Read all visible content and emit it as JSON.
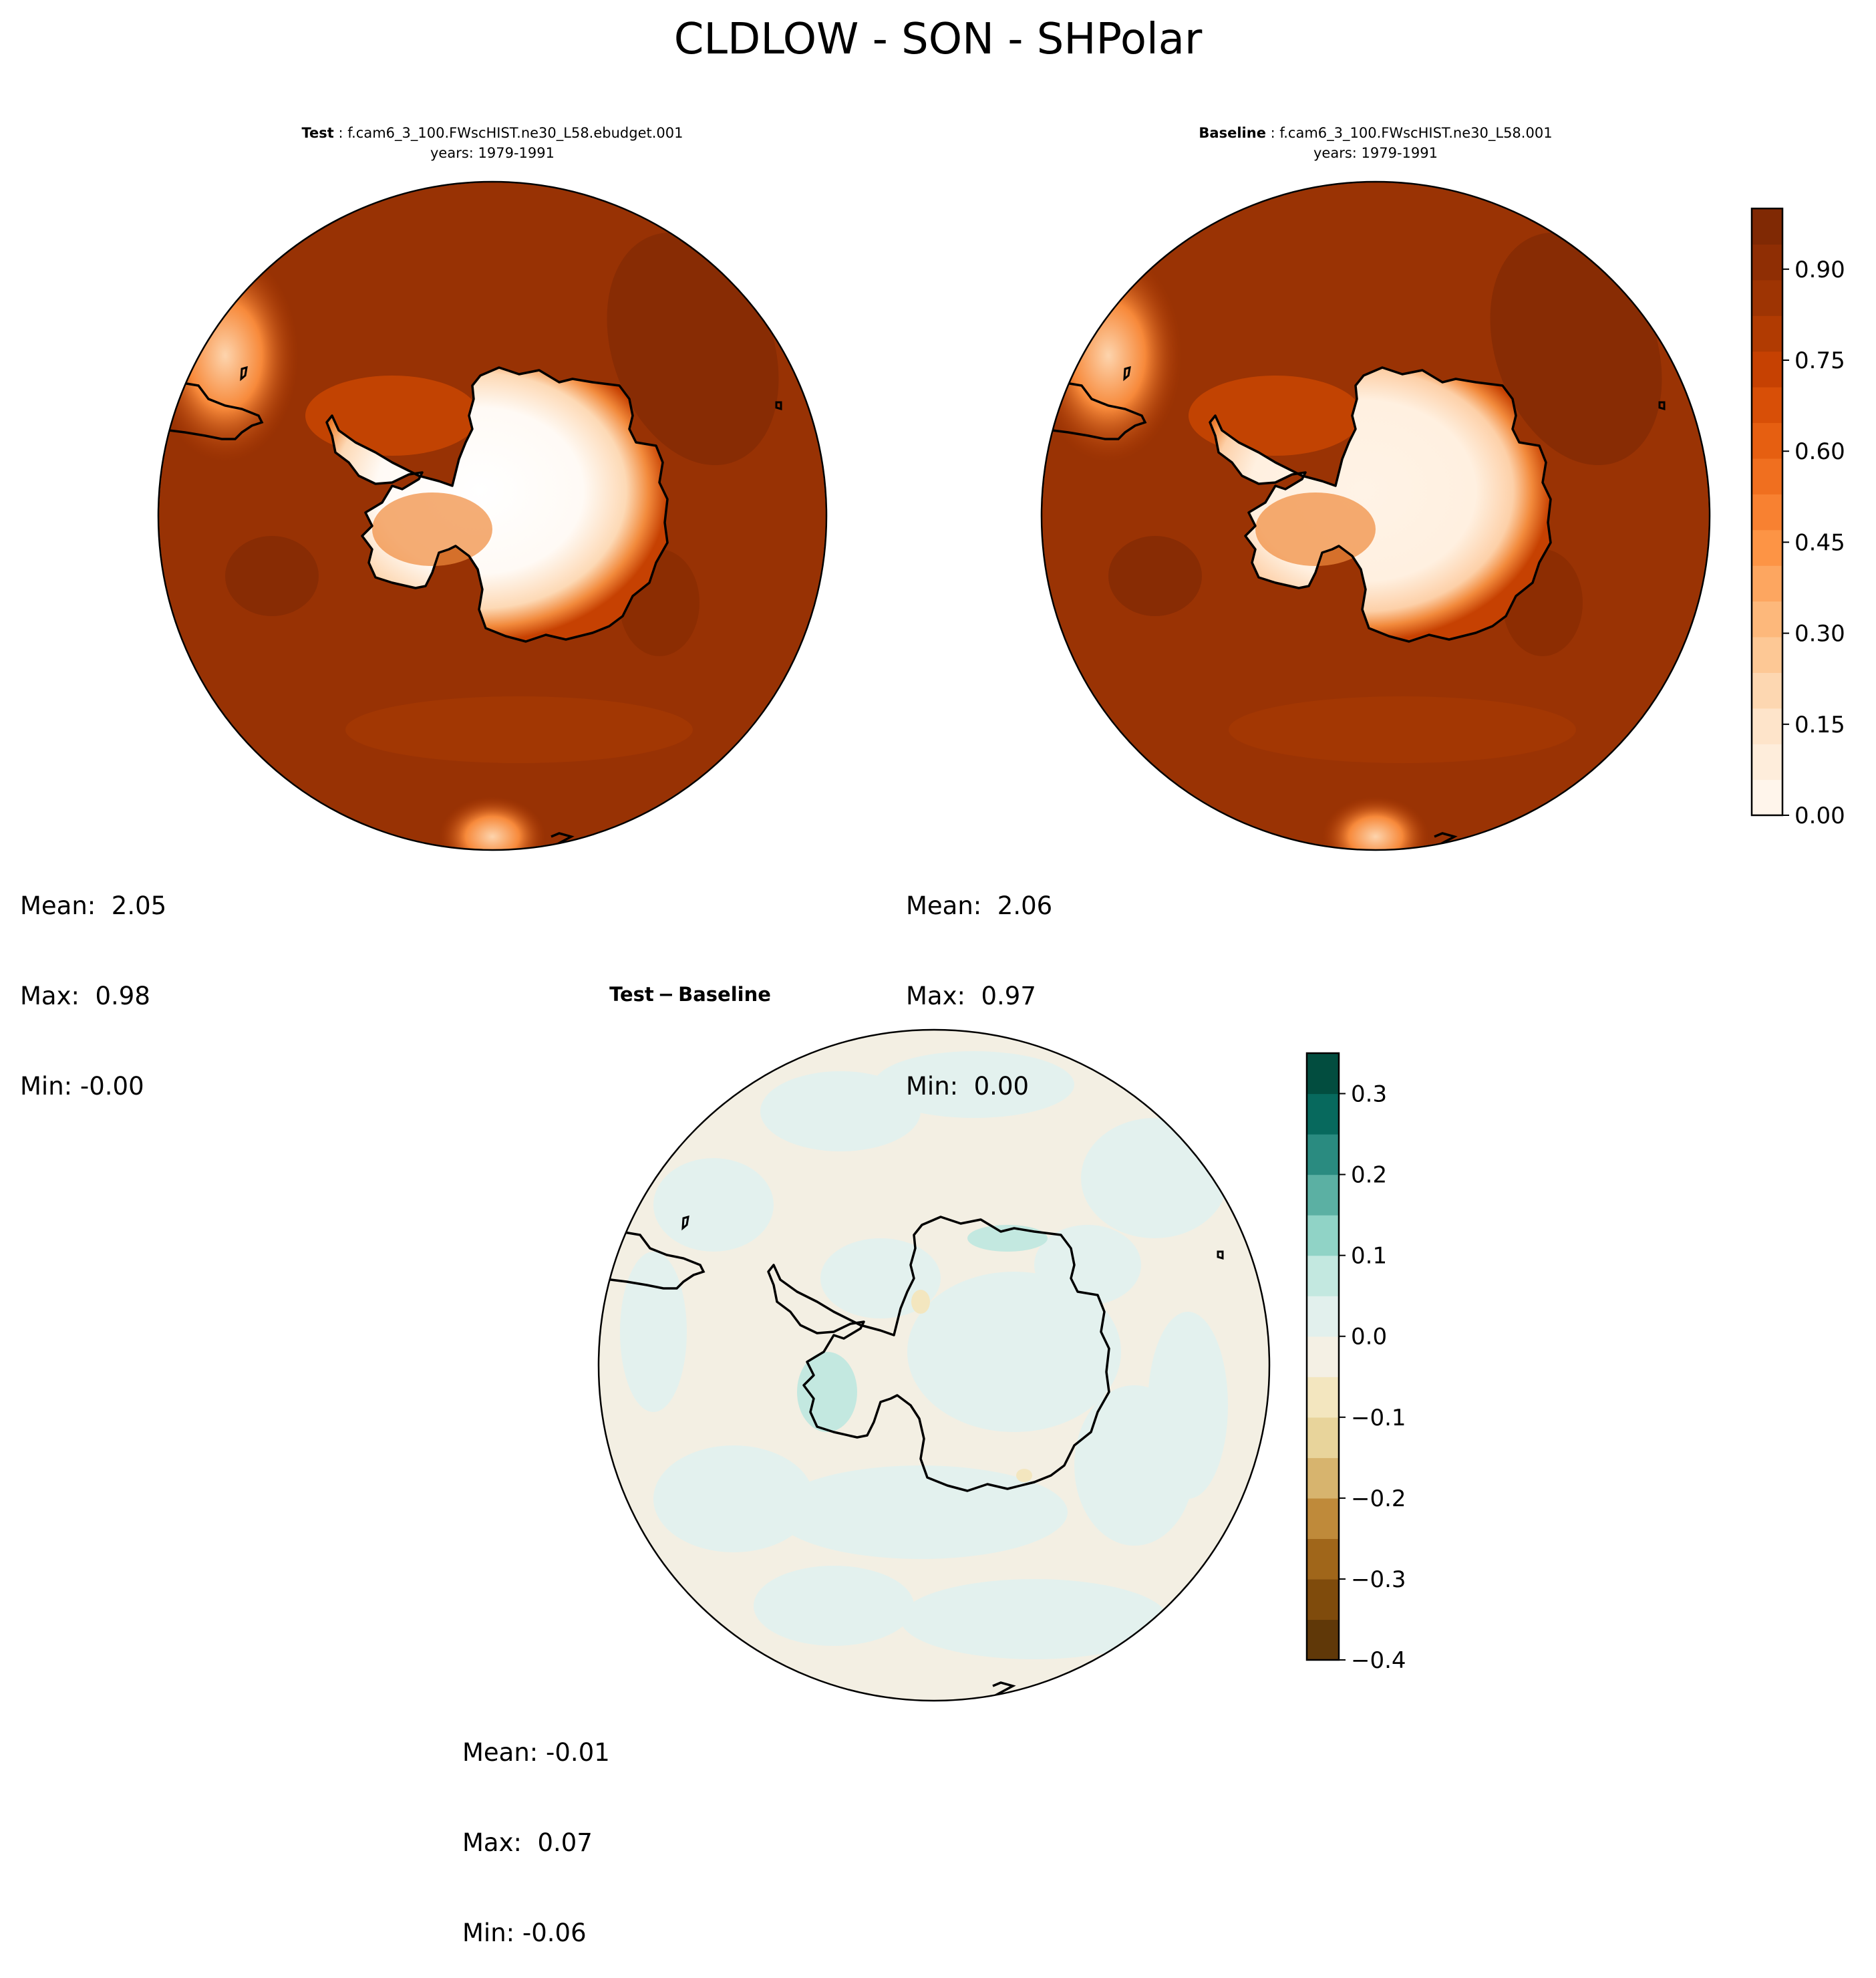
{
  "title": "CLDLOW - SON - SHPolar",
  "panels": {
    "test": {
      "label": "Test",
      "case": "f.cam6_3_100.FWscHIST.ne30_L58.ebudget.001",
      "years": "years: 1979-1991",
      "stats": {
        "mean": "Mean:  2.05",
        "max": "Max:  0.98",
        "min": "Min: -0.00"
      }
    },
    "baseline": {
      "label": "Baseline",
      "case": "f.cam6_3_100.FWscHIST.ne30_L58.001",
      "years": "years: 1979-1991",
      "stats": {
        "mean": "Mean:  2.06",
        "max": "Max:  0.97",
        "min": "Min:  0.00"
      }
    },
    "diff": {
      "label_test": "Test",
      "label_minus": "−",
      "label_baseline": "Baseline",
      "stats": {
        "mean": "Mean: -0.01",
        "max": "Max:  0.07",
        "min": "Min: -0.06"
      }
    }
  },
  "chart_data": [
    {
      "type": "heatmap",
      "projection": "south polar stereographic",
      "panel": "Test",
      "colormap": "Oranges",
      "colorbar": {
        "ticks": [
          "0.00",
          "0.15",
          "0.30",
          "0.45",
          "0.60",
          "0.75",
          "0.90"
        ],
        "tick_values": [
          0.0,
          0.15,
          0.3,
          0.45,
          0.6,
          0.75,
          0.9
        ],
        "range": [
          0.0,
          1.0
        ],
        "levels": 20
      },
      "mean": 2.05,
      "max": 0.98,
      "min": -0.0
    },
    {
      "type": "heatmap",
      "projection": "south polar stereographic",
      "panel": "Baseline",
      "colormap": "Oranges",
      "colorbar": {
        "ticks": [
          "0.00",
          "0.15",
          "0.30",
          "0.45",
          "0.60",
          "0.75",
          "0.90"
        ],
        "tick_values": [
          0.0,
          0.15,
          0.3,
          0.45,
          0.6,
          0.75,
          0.9
        ],
        "range": [
          0.0,
          1.0
        ],
        "levels": 20
      },
      "mean": 2.06,
      "max": 0.97,
      "min": 0.0
    },
    {
      "type": "heatmap",
      "projection": "south polar stereographic",
      "panel": "Test - Baseline",
      "colormap": "BrBG",
      "colorbar": {
        "ticks": [
          "−0.4",
          "−0.3",
          "−0.2",
          "−0.1",
          "0.0",
          "0.1",
          "0.2",
          "0.3"
        ],
        "tick_values": [
          -0.4,
          -0.3,
          -0.2,
          -0.1,
          0.0,
          0.1,
          0.2,
          0.3
        ],
        "range": [
          -0.4,
          0.35
        ],
        "levels": 15
      },
      "mean": -0.01,
      "max": 0.07,
      "min": -0.06
    }
  ],
  "colors": {
    "oranges_ramp": [
      "#fff5eb",
      "#feeddb",
      "#fee4ca",
      "#fdd7b1",
      "#fdc895",
      "#fdb87b",
      "#fda660",
      "#fd9445",
      "#f88131",
      "#f06f1f",
      "#e65f11",
      "#d84f07",
      "#c64102",
      "#b13b02",
      "#9e3403",
      "#8f2e04",
      "#802904"
    ],
    "brbg_ramp": [
      "#603808",
      "#7f4b0c",
      "#a0661a",
      "#bf8a3a",
      "#d7b46e",
      "#e8d49b",
      "#f3e6bf",
      "#f4f0e4",
      "#e2f0ed",
      "#c3e8e0",
      "#90d3c6",
      "#5bb0a3",
      "#2a8b80",
      "#07695d",
      "#024d3f"
    ],
    "ocean_test": "#983204",
    "ocean_base": "#9a3304",
    "ocean_diff": "#f3efe3",
    "diff_teal_light": "#e3f1ee"
  }
}
